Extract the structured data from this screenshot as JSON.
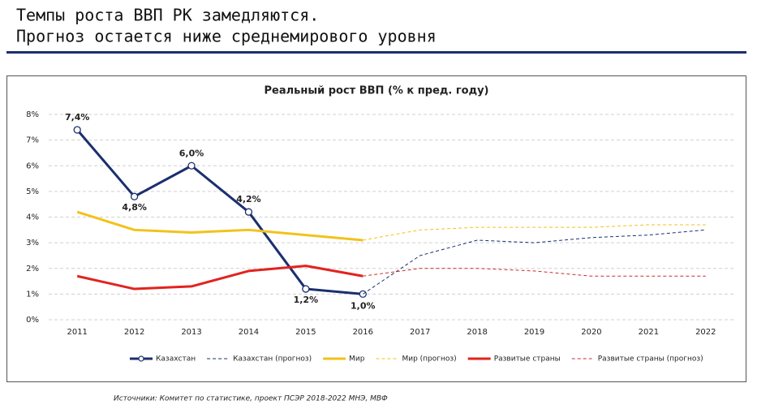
{
  "header": {
    "lines": [
      "Темпы роста ВВП РК замедляются.",
      "Прогноз остается ниже среднемирового уровня"
    ]
  },
  "source": "Источники: Комитет по статистике, проект ПСЭР 2018-2022 МНЭ, МВФ",
  "chart_data": {
    "type": "line",
    "title": "Реальный рост ВВП (% к пред. году)",
    "categories": [
      "2011",
      "2012",
      "2013",
      "2014",
      "2015",
      "2016",
      "2017",
      "2018",
      "2019",
      "2020",
      "2021",
      "2022"
    ],
    "ylim": [
      0,
      8
    ],
    "yticks": [
      {
        "value": 0,
        "label": "0%"
      },
      {
        "value": 1,
        "label": "1%"
      },
      {
        "value": 2,
        "label": "2%"
      },
      {
        "value": 3,
        "label": "3%"
      },
      {
        "value": 4,
        "label": "4%"
      },
      {
        "value": 5,
        "label": "5%"
      },
      {
        "value": 6,
        "label": "6%"
      },
      {
        "value": 7,
        "label": "7%"
      },
      {
        "value": 8,
        "label": "8%"
      }
    ],
    "grid": true,
    "legend": "bottom",
    "series": [
      {
        "name": "Казахстан",
        "color": "#1b2f6e",
        "dashed": false,
        "markers": true,
        "values": [
          7.4,
          4.8,
          6.0,
          4.2,
          1.2,
          1.0,
          null,
          null,
          null,
          null,
          null,
          null
        ],
        "value_labels": [
          "7,4%",
          "4,8%",
          "6,0%",
          "4,2%",
          "1,2%",
          "1,0%",
          null,
          null,
          null,
          null,
          null,
          null
        ]
      },
      {
        "name": "Казахстан (прогноз)",
        "color": "#1b2f6e",
        "dashed": true,
        "markers": false,
        "values": [
          null,
          null,
          null,
          null,
          null,
          1.0,
          2.5,
          3.1,
          3.0,
          3.2,
          3.3,
          3.5
        ]
      },
      {
        "name": "Мир",
        "color": "#f2c21b",
        "dashed": false,
        "markers": false,
        "values": [
          4.2,
          3.5,
          3.4,
          3.5,
          3.3,
          3.1,
          null,
          null,
          null,
          null,
          null,
          null
        ]
      },
      {
        "name": "Мир (прогноз)",
        "color": "#f2c21b",
        "dashed": true,
        "markers": false,
        "values": [
          null,
          null,
          null,
          null,
          null,
          3.1,
          3.5,
          3.6,
          3.6,
          3.6,
          3.7,
          3.7
        ]
      },
      {
        "name": "Развитые страны",
        "color": "#e2231f",
        "dashed": false,
        "markers": false,
        "values": [
          1.7,
          1.2,
          1.3,
          1.9,
          2.1,
          1.7,
          null,
          null,
          null,
          null,
          null,
          null
        ]
      },
      {
        "name": "Развитые страны (прогноз)",
        "color": "#c9302c",
        "dashed": true,
        "markers": false,
        "values": [
          null,
          null,
          null,
          null,
          null,
          1.7,
          2.0,
          2.0,
          1.9,
          1.7,
          1.7,
          1.7
        ]
      }
    ]
  }
}
